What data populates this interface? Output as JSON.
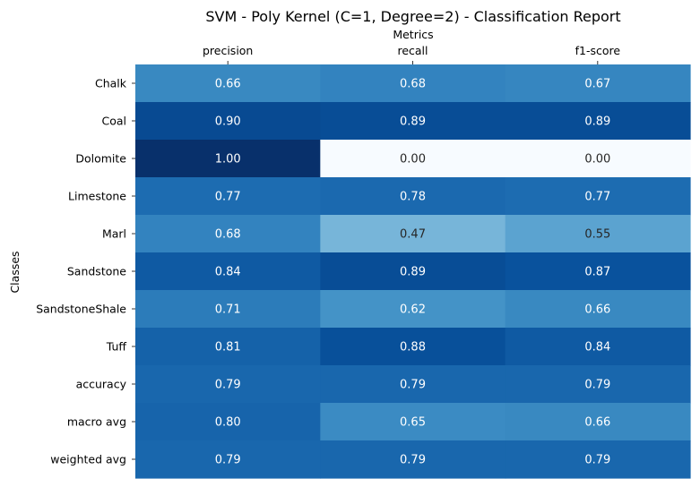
{
  "chart_data": {
    "type": "heatmap",
    "title": "SVM - Poly Kernel (C=1, Degree=2) - Classification Report",
    "xlabel": "Metrics",
    "ylabel": "Classes",
    "x_axis_position": "top",
    "columns": [
      "precision",
      "recall",
      "f1-score"
    ],
    "rows": [
      "Chalk",
      "Coal",
      "Dolomite",
      "Limestone",
      "Marl",
      "Sandstone",
      "SandstoneShale",
      "Tuff",
      "accuracy",
      "macro avg",
      "weighted avg"
    ],
    "values": [
      [
        0.66,
        0.68,
        0.67
      ],
      [
        0.9,
        0.89,
        0.89
      ],
      [
        1.0,
        0.0,
        0.0
      ],
      [
        0.77,
        0.78,
        0.77
      ],
      [
        0.68,
        0.47,
        0.55
      ],
      [
        0.84,
        0.89,
        0.87
      ],
      [
        0.71,
        0.62,
        0.66
      ],
      [
        0.81,
        0.88,
        0.84
      ],
      [
        0.79,
        0.79,
        0.79
      ],
      [
        0.8,
        0.65,
        0.66
      ],
      [
        0.79,
        0.79,
        0.79
      ]
    ],
    "value_format": "0.00",
    "colormap": "Blues",
    "vmin": 0,
    "vmax": 1,
    "colorbar": false
  }
}
